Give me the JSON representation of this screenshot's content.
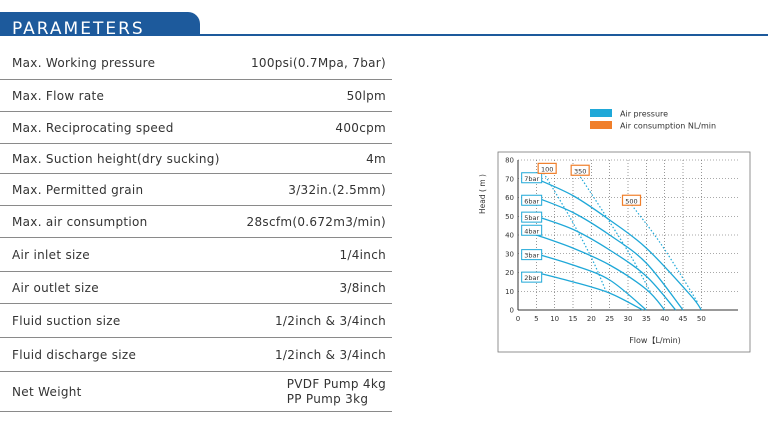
{
  "header": {
    "title": "PARAMETERS"
  },
  "parameters": [
    {
      "label": "Max. Working pressure",
      "value": "100psi(0.7Mpa, 7bar)"
    },
    {
      "label": "Max. Flow rate",
      "value": "50lpm"
    },
    {
      "label": "Max. Reciprocating speed",
      "value": "400cpm"
    },
    {
      "label": "Max. Suction height(dry sucking)",
      "value": "4m"
    },
    {
      "label": "Max. Permitted grain",
      "value": "3/32in.(2.5mm)"
    },
    {
      "label": "Max.  air consumption",
      "value": "28scfm(0.672m3/min)"
    },
    {
      "label": "Air inlet size",
      "value": "1/4inch"
    },
    {
      "label": "Air outlet size",
      "value": "3/8inch"
    },
    {
      "label": "Fluid suction size",
      "value": "1/2inch & 3/4inch"
    },
    {
      "label": "Fluid discharge size",
      "value": "1/2inch & 3/4inch"
    },
    {
      "label": "Net Weight",
      "value_lines": [
        "PVDF Pump  4kg",
        "PP Pump  3kg"
      ]
    }
  ],
  "chart_data": {
    "type": "line",
    "xlabel": "Flow【L/min)",
    "ylabel": "Head ( m )",
    "xlim": [
      0,
      60
    ],
    "ylim": [
      0,
      80
    ],
    "x_ticks": [
      0,
      5,
      10,
      15,
      20,
      25,
      30,
      35,
      40,
      45,
      50
    ],
    "y_ticks": [
      0,
      10,
      20,
      30,
      40,
      50,
      60,
      70,
      80
    ],
    "grid": true,
    "legend": {
      "placement": "top-right",
      "items": [
        {
          "name": "Air pressure",
          "color": "#1fa8d8"
        },
        {
          "name": "Air consumption NL/min",
          "color": "#f07f2b"
        }
      ]
    },
    "pressure_series": [
      {
        "name": "7bar",
        "label_at": [
          1,
          70
        ],
        "x": [
          5,
          15,
          25,
          35,
          47,
          50
        ],
        "y": [
          70,
          61,
          48,
          33,
          8,
          0
        ]
      },
      {
        "name": "6bar",
        "label_at": [
          1,
          58
        ],
        "x": [
          5,
          15,
          25,
          35,
          45
        ],
        "y": [
          60,
          52,
          40,
          25,
          0
        ]
      },
      {
        "name": "5bar",
        "label_at": [
          1,
          49
        ],
        "x": [
          5,
          15,
          25,
          35,
          43
        ],
        "y": [
          50,
          43,
          32,
          18,
          0
        ]
      },
      {
        "name": "4bar",
        "label_at": [
          1,
          42
        ],
        "x": [
          5,
          15,
          25,
          35,
          40
        ],
        "y": [
          40,
          33,
          24,
          11,
          0
        ]
      },
      {
        "name": "3bar",
        "label_at": [
          1,
          29
        ],
        "x": [
          5,
          15,
          25,
          35
        ],
        "y": [
          30,
          24,
          16,
          0
        ]
      },
      {
        "name": "2bar",
        "label_at": [
          1,
          17
        ],
        "x": [
          5,
          15,
          25,
          34
        ],
        "y": [
          20,
          15,
          9,
          0
        ]
      }
    ],
    "consumption_series": [
      {
        "name": "100",
        "label_at": [
          5.5,
          75
        ],
        "x": [
          7,
          14,
          20,
          24
        ],
        "y": [
          73,
          50,
          28,
          10
        ]
      },
      {
        "name": "350",
        "label_at": [
          14.5,
          74
        ],
        "x": [
          17,
          24,
          31,
          36
        ],
        "y": [
          71,
          50,
          28,
          10
        ]
      },
      {
        "name": "500",
        "label_at": [
          28.5,
          58
        ],
        "x": [
          31,
          38,
          44,
          49
        ],
        "y": [
          56,
          38,
          20,
          4
        ]
      }
    ]
  },
  "colors": {
    "header": "#1d5a9c",
    "pressure": "#1fa8d8",
    "consumption": "#f07f2b"
  }
}
